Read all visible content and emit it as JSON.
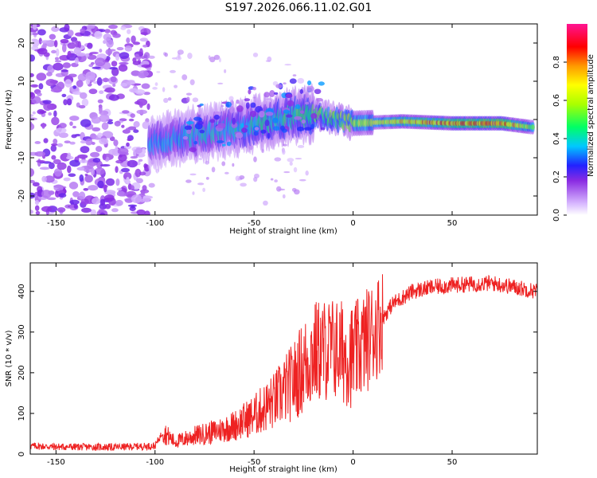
{
  "title": "S197.2026.066.11.02.G01",
  "colorbar": {
    "label": "Normalized spectral amplitude",
    "ticks": [
      "0.0",
      "0.2",
      "0.4",
      "0.6",
      "0.8"
    ],
    "range": [
      0.0,
      1.0
    ]
  },
  "chart_data": [
    {
      "type": "heatmap",
      "title": "",
      "xlabel": "Height of straight line (km)",
      "ylabel": "Frequency (Hz)",
      "xlim": [
        -163,
        93
      ],
      "ylim": [
        -25,
        25
      ],
      "xticks": [
        -150,
        -100,
        -50,
        0,
        50
      ],
      "yticks": [
        -20,
        -10,
        0,
        10,
        20
      ],
      "description_values": {
        "noise_region_x": [
          -163,
          -103
        ],
        "signal_start_x": -103,
        "signal_track": [
          {
            "x": -100,
            "y": -6,
            "amp": 0.35
          },
          {
            "x": -80,
            "y": -4,
            "amp": 0.4
          },
          {
            "x": -60,
            "y": -2.5,
            "amp": 0.4
          },
          {
            "x": -40,
            "y": 0,
            "amp": 0.45
          },
          {
            "x": -20,
            "y": 1.5,
            "amp": 0.5
          },
          {
            "x": 0,
            "y": -1,
            "amp": 0.6
          },
          {
            "x": 25,
            "y": -0.5,
            "amp": 0.75
          },
          {
            "x": 50,
            "y": -1,
            "amp": 0.85
          },
          {
            "x": 75,
            "y": -1,
            "amp": 0.9
          },
          {
            "x": 90,
            "y": -2,
            "amp": 0.6
          }
        ]
      }
    },
    {
      "type": "line",
      "title": "",
      "xlabel": "Height of straight line (km)",
      "ylabel": "SNR (10 * v/v)",
      "xlim": [
        -163,
        93
      ],
      "ylim": [
        0,
        470
      ],
      "xticks": [
        -150,
        -100,
        -50,
        0,
        50
      ],
      "yticks": [
        0,
        100,
        200,
        300,
        400
      ],
      "series": [
        {
          "name": "SNR",
          "color": "#ee2222",
          "trend": {
            "x": [
              -163,
              -150,
              -120,
              -100,
              -96,
              -90,
              -80,
              -70,
              -60,
              -50,
              -40,
              -30,
              -20,
              -10,
              0,
              10,
              20,
              30,
              40,
              50,
              60,
              70,
              80,
              93
            ],
            "y": [
              20,
              18,
              17,
              20,
              55,
              30,
              45,
              55,
              70,
              95,
              130,
              180,
              250,
              260,
              240,
              300,
              370,
              400,
              410,
              415,
              418,
              420,
              412,
              400
            ]
          }
        }
      ]
    }
  ],
  "colors": {
    "line": "#ee2222",
    "frame": "#000000"
  }
}
